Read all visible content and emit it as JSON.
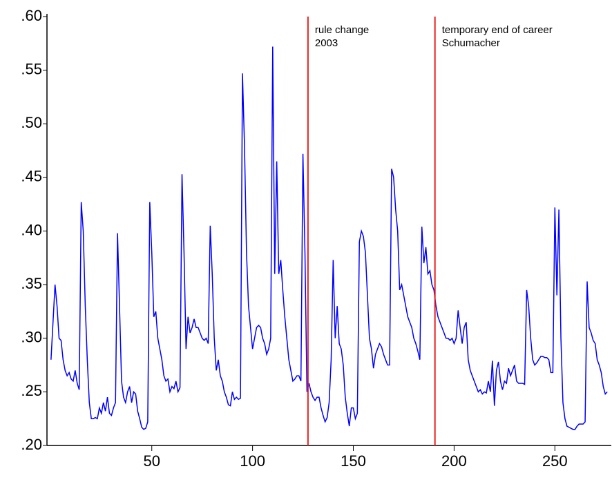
{
  "chart_data": {
    "type": "line",
    "x": [
      0,
      1,
      2,
      3,
      4,
      5,
      6,
      7,
      8,
      9,
      10,
      11,
      12,
      13,
      14,
      15,
      16,
      17,
      18,
      19,
      20,
      21,
      22,
      23,
      24,
      25,
      26,
      27,
      28,
      29,
      30,
      31,
      32,
      33,
      34,
      35,
      36,
      37,
      38,
      39,
      40,
      41,
      42,
      43,
      44,
      45,
      46,
      47,
      48,
      49,
      50,
      51,
      52,
      53,
      54,
      55,
      56,
      57,
      58,
      59,
      60,
      61,
      62,
      63,
      64,
      65,
      66,
      67,
      68,
      69,
      70,
      71,
      72,
      73,
      74,
      75,
      76,
      77,
      78,
      79,
      80,
      81,
      82,
      83,
      84,
      85,
      86,
      87,
      88,
      89,
      90,
      91,
      92,
      93,
      94,
      95,
      96,
      97,
      98,
      99,
      100,
      101,
      102,
      103,
      104,
      105,
      106,
      107,
      108,
      109,
      110,
      111,
      112,
      113,
      114,
      115,
      116,
      117,
      118,
      119,
      120,
      121,
      122,
      123,
      124,
      125,
      126,
      127,
      128,
      129,
      130,
      131,
      132,
      133,
      134,
      135,
      136,
      137,
      138,
      139,
      140,
      141,
      142,
      143,
      144,
      145,
      146,
      147,
      148,
      149,
      150,
      151,
      152,
      153,
      154,
      155,
      156,
      157,
      158,
      159,
      160,
      161,
      162,
      163,
      164,
      165,
      166,
      167,
      168,
      169,
      170,
      171,
      172,
      173,
      174,
      175,
      176,
      177,
      178,
      179,
      180,
      181,
      182,
      183,
      184,
      185,
      186,
      187,
      188,
      189,
      190,
      191,
      192,
      193,
      194,
      195,
      196,
      197,
      198,
      199,
      200,
      201,
      202,
      203,
      204,
      205,
      206,
      207,
      208,
      209,
      210,
      211,
      212,
      213,
      214,
      215,
      216,
      217,
      218,
      219,
      220,
      221,
      222,
      223,
      224,
      225,
      226,
      227,
      228,
      229,
      230,
      231,
      232,
      233,
      234,
      235,
      236,
      237,
      238,
      239,
      240,
      241,
      242,
      243,
      244,
      245,
      246,
      247,
      248,
      249,
      250,
      251,
      252,
      253,
      254,
      255,
      256,
      257,
      258,
      259,
      260,
      261,
      262,
      263,
      264,
      265,
      266,
      267,
      268,
      269,
      270,
      271,
      272,
      273,
      274,
      275,
      276
    ],
    "values": [
      0.28,
      0.315,
      0.35,
      0.33,
      0.3,
      0.298,
      0.28,
      0.27,
      0.265,
      0.268,
      0.262,
      0.26,
      0.27,
      0.258,
      0.252,
      0.427,
      0.4,
      0.33,
      0.28,
      0.24,
      0.225,
      0.225,
      0.226,
      0.225,
      0.235,
      0.23,
      0.24,
      0.232,
      0.245,
      0.23,
      0.228,
      0.235,
      0.24,
      0.398,
      0.33,
      0.26,
      0.245,
      0.24,
      0.25,
      0.255,
      0.24,
      0.25,
      0.248,
      0.232,
      0.225,
      0.217,
      0.215,
      0.216,
      0.222,
      0.427,
      0.38,
      0.32,
      0.325,
      0.3,
      0.29,
      0.28,
      0.265,
      0.26,
      0.262,
      0.25,
      0.255,
      0.253,
      0.26,
      0.25,
      0.254,
      0.453,
      0.38,
      0.29,
      0.32,
      0.305,
      0.31,
      0.318,
      0.31,
      0.31,
      0.305,
      0.3,
      0.298,
      0.3,
      0.295,
      0.405,
      0.36,
      0.3,
      0.27,
      0.28,
      0.265,
      0.26,
      0.25,
      0.245,
      0.238,
      0.237,
      0.25,
      0.243,
      0.245,
      0.243,
      0.244,
      0.547,
      0.48,
      0.38,
      0.33,
      0.31,
      0.29,
      0.3,
      0.31,
      0.312,
      0.31,
      0.3,
      0.295,
      0.285,
      0.29,
      0.3,
      0.572,
      0.36,
      0.465,
      0.36,
      0.373,
      0.345,
      0.32,
      0.3,
      0.28,
      0.27,
      0.26,
      0.262,
      0.265,
      0.265,
      0.26,
      0.472,
      0.38,
      0.25,
      0.258,
      0.25,
      0.245,
      0.242,
      0.245,
      0.245,
      0.235,
      0.228,
      0.222,
      0.226,
      0.24,
      0.28,
      0.373,
      0.3,
      0.33,
      0.295,
      0.29,
      0.275,
      0.245,
      0.23,
      0.218,
      0.235,
      0.235,
      0.225,
      0.23,
      0.39,
      0.4,
      0.395,
      0.38,
      0.34,
      0.3,
      0.29,
      0.272,
      0.285,
      0.29,
      0.295,
      0.292,
      0.285,
      0.28,
      0.275,
      0.275,
      0.458,
      0.45,
      0.42,
      0.4,
      0.345,
      0.35,
      0.34,
      0.33,
      0.32,
      0.315,
      0.31,
      0.3,
      0.295,
      0.288,
      0.28,
      0.404,
      0.37,
      0.385,
      0.36,
      0.363,
      0.35,
      0.345,
      0.33,
      0.32,
      0.315,
      0.31,
      0.305,
      0.3,
      0.3,
      0.298,
      0.3,
      0.295,
      0.3,
      0.326,
      0.31,
      0.295,
      0.31,
      0.315,
      0.28,
      0.27,
      0.265,
      0.26,
      0.255,
      0.25,
      0.252,
      0.248,
      0.25,
      0.249,
      0.26,
      0.25,
      0.279,
      0.237,
      0.27,
      0.278,
      0.26,
      0.252,
      0.26,
      0.258,
      0.272,
      0.265,
      0.27,
      0.275,
      0.26,
      0.258,
      0.258,
      0.258,
      0.257,
      0.345,
      0.33,
      0.3,
      0.28,
      0.275,
      0.277,
      0.28,
      0.283,
      0.283,
      0.282,
      0.282,
      0.28,
      0.268,
      0.268,
      0.422,
      0.34,
      0.42,
      0.3,
      0.24,
      0.225,
      0.218,
      0.217,
      0.216,
      0.215,
      0.215,
      0.218,
      0.22,
      0.22,
      0.22,
      0.222,
      0.353,
      0.31,
      0.305,
      0.298,
      0.295,
      0.28,
      0.275,
      0.268,
      0.255,
      0.248,
      0.25
    ],
    "color": "#0000ff",
    "xlim": [
      -2,
      278
    ],
    "xticks": [
      50,
      100,
      150,
      200,
      250
    ],
    "ylim": [
      0.2,
      0.6
    ],
    "yticks": [
      {
        "value": 0.2,
        "label": ".20"
      },
      {
        "value": 0.25,
        "label": ".25"
      },
      {
        "value": 0.3,
        "label": ".30"
      },
      {
        "value": 0.35,
        "label": ".35"
      },
      {
        "value": 0.4,
        "label": ".40"
      },
      {
        "value": 0.45,
        "label": ".45"
      },
      {
        "value": 0.5,
        "label": ".50"
      },
      {
        "value": 0.55,
        "label": ".55"
      },
      {
        "value": 0.6,
        "label": ".60"
      }
    ],
    "annotations": [
      {
        "x": 127.5,
        "lines": [
          "rule change",
          "2003"
        ],
        "color": "#e8201c"
      },
      {
        "x": 190.5,
        "lines": [
          "temporary end of career",
          "Schumacher"
        ],
        "color": "#e8201c"
      }
    ]
  }
}
